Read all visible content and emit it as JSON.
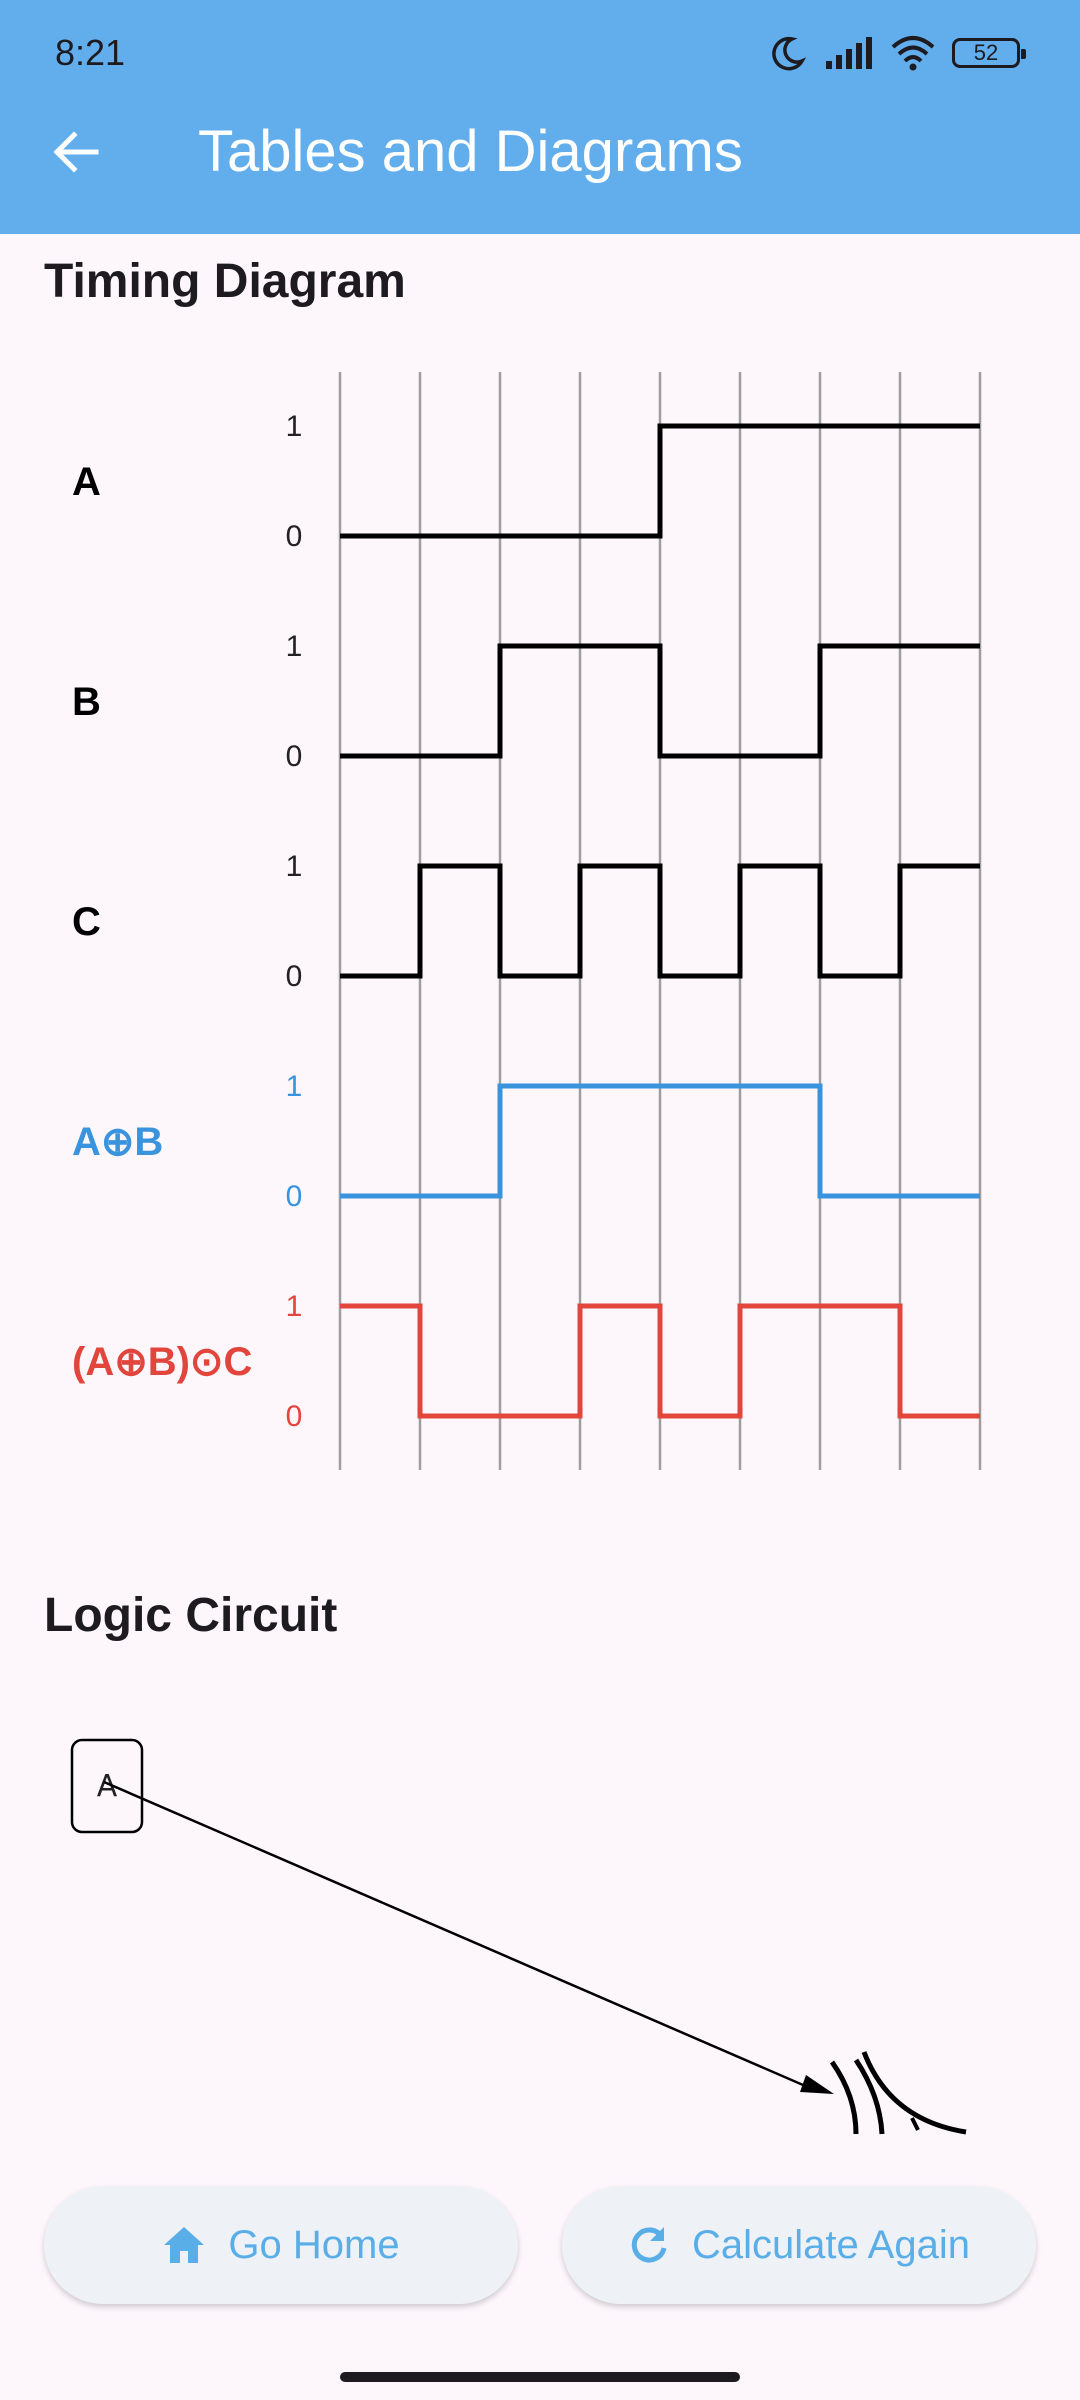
{
  "status": {
    "time": "8:21",
    "battery": "52"
  },
  "appbar": {
    "title": "Tables and Diagrams"
  },
  "timing": {
    "title": "Timing Diagram",
    "level_high": "1",
    "level_low": "0",
    "signals": [
      {
        "label": "A",
        "color": "#000000",
        "values": [
          0,
          0,
          0,
          0,
          1,
          1,
          1,
          1
        ]
      },
      {
        "label": "B",
        "color": "#000000",
        "values": [
          0,
          0,
          1,
          1,
          0,
          0,
          1,
          1
        ]
      },
      {
        "label": "C",
        "color": "#000000",
        "values": [
          0,
          1,
          0,
          1,
          0,
          1,
          0,
          1
        ]
      },
      {
        "label": "A⊕B",
        "color": "#3a93dd",
        "values": [
          0,
          0,
          1,
          1,
          1,
          1,
          0,
          0
        ]
      },
      {
        "label": "(A⊕B)⊙C",
        "color": "#e2453c",
        "values": [
          1,
          0,
          0,
          1,
          0,
          1,
          1,
          0
        ]
      }
    ]
  },
  "circuit": {
    "title": "Logic Circuit",
    "input_label": "A"
  },
  "buttons": {
    "home": {
      "label": "Go Home",
      "icon": "home-icon"
    },
    "again": {
      "label": "Calculate Again",
      "icon": "refresh-icon"
    }
  }
}
